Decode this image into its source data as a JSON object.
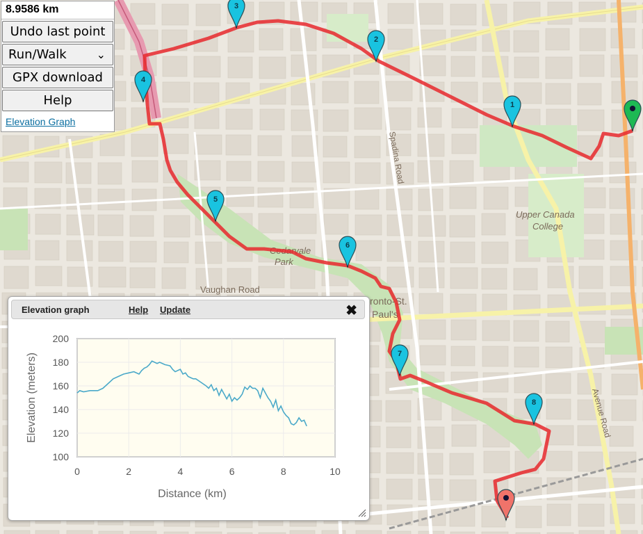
{
  "controls": {
    "distance": "8.9586 km",
    "undo_label": "Undo last point",
    "mode_selected": "Run/Walk",
    "gpx_label": "GPX download",
    "help_label": "Help",
    "elevation_link": "Elevation Graph"
  },
  "map": {
    "labels": {
      "park": "Cedarvale",
      "park2": "Park",
      "vaughan": "Vaughan Road",
      "spadina": "Spadina Road",
      "ucc1": "Upper Canada",
      "ucc2": "College",
      "stpauls1": "ronto-St.",
      "stpauls2": "Paul's",
      "avenue": "Avenue Road"
    },
    "markers": [
      "1",
      "2",
      "3",
      "4",
      "5",
      "6",
      "7",
      "8"
    ],
    "route_color": "#e8282d",
    "marker_color": "#19c3e0",
    "start_color": "#1db954",
    "end_color": "#f0736a"
  },
  "elevation_panel": {
    "title": "Elevation graph",
    "help": "Help",
    "update": "Update",
    "close": "✖"
  },
  "chart_data": {
    "type": "line",
    "title": "",
    "xlabel": "Distance (km)",
    "ylabel": "Elevation (meters)",
    "xlim": [
      0,
      10
    ],
    "ylim": [
      100,
      200
    ],
    "xticks": [
      "0",
      "2",
      "4",
      "6",
      "8",
      "10"
    ],
    "yticks": [
      "100",
      "120",
      "140",
      "160",
      "180",
      "200"
    ],
    "grid": true,
    "color": "#4aa9c9",
    "series": [
      {
        "x": [
          0,
          0.1,
          0.25,
          0.5,
          0.8,
          1.0,
          1.2,
          1.4,
          1.6,
          1.8,
          2.0,
          2.2,
          2.4,
          2.5,
          2.6,
          2.7,
          2.8,
          2.9,
          3.0,
          3.1,
          3.2,
          3.4,
          3.6,
          3.7,
          3.8,
          4.0,
          4.1,
          4.2,
          4.3,
          4.4,
          4.5,
          4.6,
          4.8,
          5.0,
          5.1,
          5.2,
          5.3,
          5.4,
          5.5,
          5.6,
          5.7,
          5.8,
          5.9,
          6.0,
          6.1,
          6.2,
          6.3,
          6.4,
          6.5,
          6.6,
          6.7,
          6.8,
          6.9,
          7.0,
          7.1,
          7.2,
          7.3,
          7.4,
          7.5,
          7.6,
          7.7,
          7.8,
          7.9,
          8.0,
          8.1,
          8.2,
          8.3,
          8.4,
          8.5,
          8.6,
          8.7,
          8.8,
          8.9
        ],
        "y": [
          154,
          156,
          155,
          156,
          156,
          158,
          162,
          166,
          168,
          170,
          171,
          172,
          170,
          173,
          175,
          176,
          178,
          181,
          180,
          179,
          180,
          178,
          177,
          174,
          172,
          174,
          170,
          171,
          168,
          167,
          166,
          166,
          163,
          160,
          158,
          161,
          156,
          158,
          152,
          157,
          153,
          149,
          153,
          147,
          150,
          148,
          150,
          153,
          159,
          157,
          160,
          158,
          158,
          156,
          150,
          158,
          154,
          150,
          147,
          142,
          148,
          139,
          143,
          138,
          135,
          133,
          128,
          127,
          129,
          133,
          130,
          131,
          126
        ]
      }
    ]
  }
}
